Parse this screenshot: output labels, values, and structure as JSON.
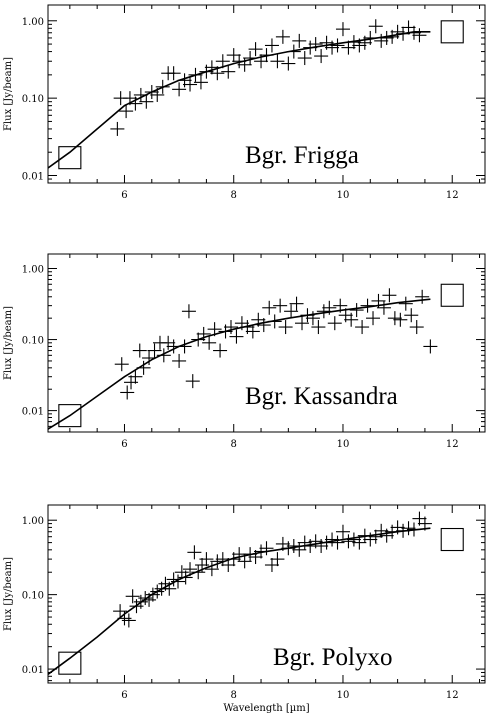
{
  "chart_data": [
    {
      "type": "scatter",
      "title": "Bgr. Frigga",
      "ylabel": "Flux [Jy/beam]",
      "xlabel": "",
      "xlim": [
        4.6,
        12.6
      ],
      "ylim": [
        0.008,
        1.6
      ],
      "yscale": "log",
      "xticks": [
        6,
        8,
        10,
        12
      ],
      "yticks": [
        0.01,
        0.1,
        1.0
      ],
      "ytick_labels": [
        "0.01",
        "0.10",
        "1.00"
      ],
      "grid": false,
      "series": [
        {
          "marker": "plus",
          "x": [
            5.87,
            5.93,
            6.03,
            6.1,
            6.2,
            6.3,
            6.4,
            6.5,
            6.6,
            6.7,
            6.8,
            6.9,
            7.0,
            7.1,
            7.2,
            7.3,
            7.4,
            7.5,
            7.6,
            7.7,
            7.8,
            7.9,
            8.0,
            8.1,
            8.2,
            8.3,
            8.4,
            8.5,
            8.6,
            8.7,
            8.8,
            8.9,
            9.0,
            9.1,
            9.2,
            9.3,
            9.4,
            9.5,
            9.6,
            9.7,
            9.8,
            9.9,
            10.0,
            10.1,
            10.2,
            10.3,
            10.4,
            10.5,
            10.6,
            10.7,
            10.8,
            10.9,
            11.0,
            11.1,
            11.2,
            11.3,
            11.4
          ],
          "y": [
            0.04,
            0.1,
            0.068,
            0.1,
            0.085,
            0.11,
            0.09,
            0.12,
            0.11,
            0.14,
            0.21,
            0.21,
            0.13,
            0.17,
            0.15,
            0.2,
            0.16,
            0.22,
            0.25,
            0.21,
            0.3,
            0.22,
            0.36,
            0.3,
            0.27,
            0.33,
            0.43,
            0.3,
            0.36,
            0.48,
            0.3,
            0.62,
            0.28,
            0.4,
            0.55,
            0.33,
            0.45,
            0.5,
            0.35,
            0.52,
            0.45,
            0.48,
            0.78,
            0.45,
            0.53,
            0.48,
            0.52,
            0.6,
            0.85,
            0.55,
            0.6,
            0.62,
            0.72,
            0.68,
            0.82,
            0.7,
            0.65
          ]
        },
        {
          "name": "fit",
          "x": [
            4.6,
            5.0,
            5.5,
            6.0,
            6.5,
            7.0,
            7.5,
            8.0,
            8.5,
            9.0,
            9.5,
            10.0,
            10.5,
            11.0,
            11.3,
            11.6
          ],
          "y": [
            0.0125,
            0.02,
            0.04,
            0.08,
            0.12,
            0.17,
            0.22,
            0.28,
            0.34,
            0.4,
            0.46,
            0.52,
            0.58,
            0.66,
            0.72,
            0.72
          ]
        },
        {
          "marker": "square",
          "x": [
            5.0,
            12.0
          ],
          "y": [
            0.017,
            0.72
          ]
        }
      ]
    },
    {
      "type": "scatter",
      "title": "Bgr. Kassandra",
      "ylabel": "Flux [Jy/beam]",
      "xlabel": "",
      "xlim": [
        4.6,
        12.6
      ],
      "ylim": [
        0.005,
        1.6
      ],
      "yscale": "log",
      "xticks": [
        6,
        8,
        10,
        12
      ],
      "yticks": [
        0.01,
        0.1,
        1.0
      ],
      "ytick_labels": [
        "0.01",
        "0.10",
        "1.00"
      ],
      "grid": false,
      "series": [
        {
          "marker": "plus",
          "x": [
            5.95,
            6.05,
            6.12,
            6.2,
            6.28,
            6.35,
            6.45,
            6.55,
            6.65,
            6.72,
            6.8,
            6.9,
            7.0,
            7.1,
            7.18,
            7.25,
            7.35,
            7.45,
            7.55,
            7.65,
            7.75,
            7.85,
            7.95,
            8.05,
            8.15,
            8.25,
            8.35,
            8.45,
            8.55,
            8.65,
            8.75,
            8.85,
            8.95,
            9.05,
            9.15,
            9.25,
            9.35,
            9.45,
            9.55,
            9.65,
            9.75,
            9.85,
            9.95,
            10.05,
            10.15,
            10.25,
            10.35,
            10.45,
            10.55,
            10.65,
            10.75,
            10.85,
            10.95,
            11.05,
            11.15,
            11.25,
            11.35,
            11.45,
            11.6
          ],
          "y": [
            0.045,
            0.018,
            0.025,
            0.03,
            0.07,
            0.04,
            0.055,
            0.07,
            0.09,
            0.06,
            0.09,
            0.08,
            0.05,
            0.08,
            0.25,
            0.026,
            0.1,
            0.12,
            0.09,
            0.14,
            0.07,
            0.13,
            0.15,
            0.11,
            0.17,
            0.15,
            0.13,
            0.19,
            0.16,
            0.28,
            0.18,
            0.3,
            0.15,
            0.25,
            0.32,
            0.17,
            0.22,
            0.2,
            0.15,
            0.25,
            0.28,
            0.17,
            0.3,
            0.22,
            0.19,
            0.26,
            0.15,
            0.3,
            0.2,
            0.35,
            0.28,
            0.42,
            0.2,
            0.19,
            0.32,
            0.22,
            0.15,
            0.4,
            0.08
          ]
        },
        {
          "name": "fit",
          "x": [
            4.6,
            5.0,
            5.5,
            6.0,
            6.5,
            7.0,
            7.5,
            8.0,
            8.5,
            9.0,
            9.5,
            10.0,
            10.5,
            11.0,
            11.6
          ],
          "y": [
            0.0055,
            0.0085,
            0.016,
            0.03,
            0.052,
            0.08,
            0.11,
            0.14,
            0.17,
            0.2,
            0.23,
            0.26,
            0.29,
            0.33,
            0.37
          ]
        },
        {
          "marker": "square",
          "x": [
            5.0,
            12.0
          ],
          "y": [
            0.0085,
            0.42
          ]
        }
      ]
    },
    {
      "type": "scatter",
      "title": "Bgr. Polyxo",
      "ylabel": "Flux [Jy/beam]",
      "xlabel": "Wavelength [µm]",
      "xlim": [
        4.6,
        12.6
      ],
      "ylim": [
        0.0065,
        1.6
      ],
      "yscale": "log",
      "xticks": [
        6,
        8,
        10,
        12
      ],
      "yticks": [
        0.01,
        0.1,
        1.0
      ],
      "ytick_labels": [
        "0.01",
        "0.10",
        "1.00"
      ],
      "grid": false,
      "series": [
        {
          "marker": "plus",
          "x": [
            5.92,
            6.0,
            6.08,
            6.15,
            6.22,
            6.3,
            6.38,
            6.45,
            6.52,
            6.6,
            6.68,
            6.75,
            6.82,
            6.9,
            6.98,
            7.05,
            7.12,
            7.2,
            7.28,
            7.35,
            7.42,
            7.5,
            7.6,
            7.7,
            7.8,
            7.9,
            8.0,
            8.1,
            8.2,
            8.3,
            8.4,
            8.5,
            8.6,
            8.7,
            8.8,
            8.9,
            9.0,
            9.1,
            9.2,
            9.3,
            9.4,
            9.5,
            9.6,
            9.7,
            9.8,
            9.9,
            10.0,
            10.1,
            10.2,
            10.3,
            10.4,
            10.5,
            10.6,
            10.7,
            10.8,
            10.9,
            11.0,
            11.1,
            11.2,
            11.3,
            11.4,
            11.5
          ],
          "y": [
            0.06,
            0.048,
            0.045,
            0.095,
            0.07,
            0.08,
            0.09,
            0.085,
            0.1,
            0.11,
            0.12,
            0.14,
            0.12,
            0.16,
            0.15,
            0.2,
            0.17,
            0.22,
            0.37,
            0.2,
            0.25,
            0.3,
            0.22,
            0.28,
            0.3,
            0.25,
            0.3,
            0.35,
            0.28,
            0.35,
            0.32,
            0.38,
            0.42,
            0.25,
            0.3,
            0.48,
            0.42,
            0.45,
            0.4,
            0.5,
            0.45,
            0.52,
            0.45,
            0.5,
            0.55,
            0.5,
            0.7,
            0.52,
            0.55,
            0.5,
            0.62,
            0.55,
            0.6,
            0.72,
            0.62,
            0.7,
            0.8,
            0.72,
            0.78,
            0.75,
            1.05,
            0.9
          ]
        },
        {
          "name": "fit",
          "x": [
            4.6,
            5.0,
            5.5,
            6.0,
            6.5,
            7.0,
            7.5,
            8.0,
            8.5,
            9.0,
            9.5,
            10.0,
            10.5,
            11.0,
            11.6
          ],
          "y": [
            0.0085,
            0.014,
            0.027,
            0.055,
            0.1,
            0.16,
            0.23,
            0.31,
            0.37,
            0.42,
            0.48,
            0.55,
            0.62,
            0.7,
            0.78
          ]
        },
        {
          "marker": "square",
          "x": [
            5.0,
            12.0
          ],
          "y": [
            0.012,
            0.55
          ]
        }
      ]
    }
  ]
}
